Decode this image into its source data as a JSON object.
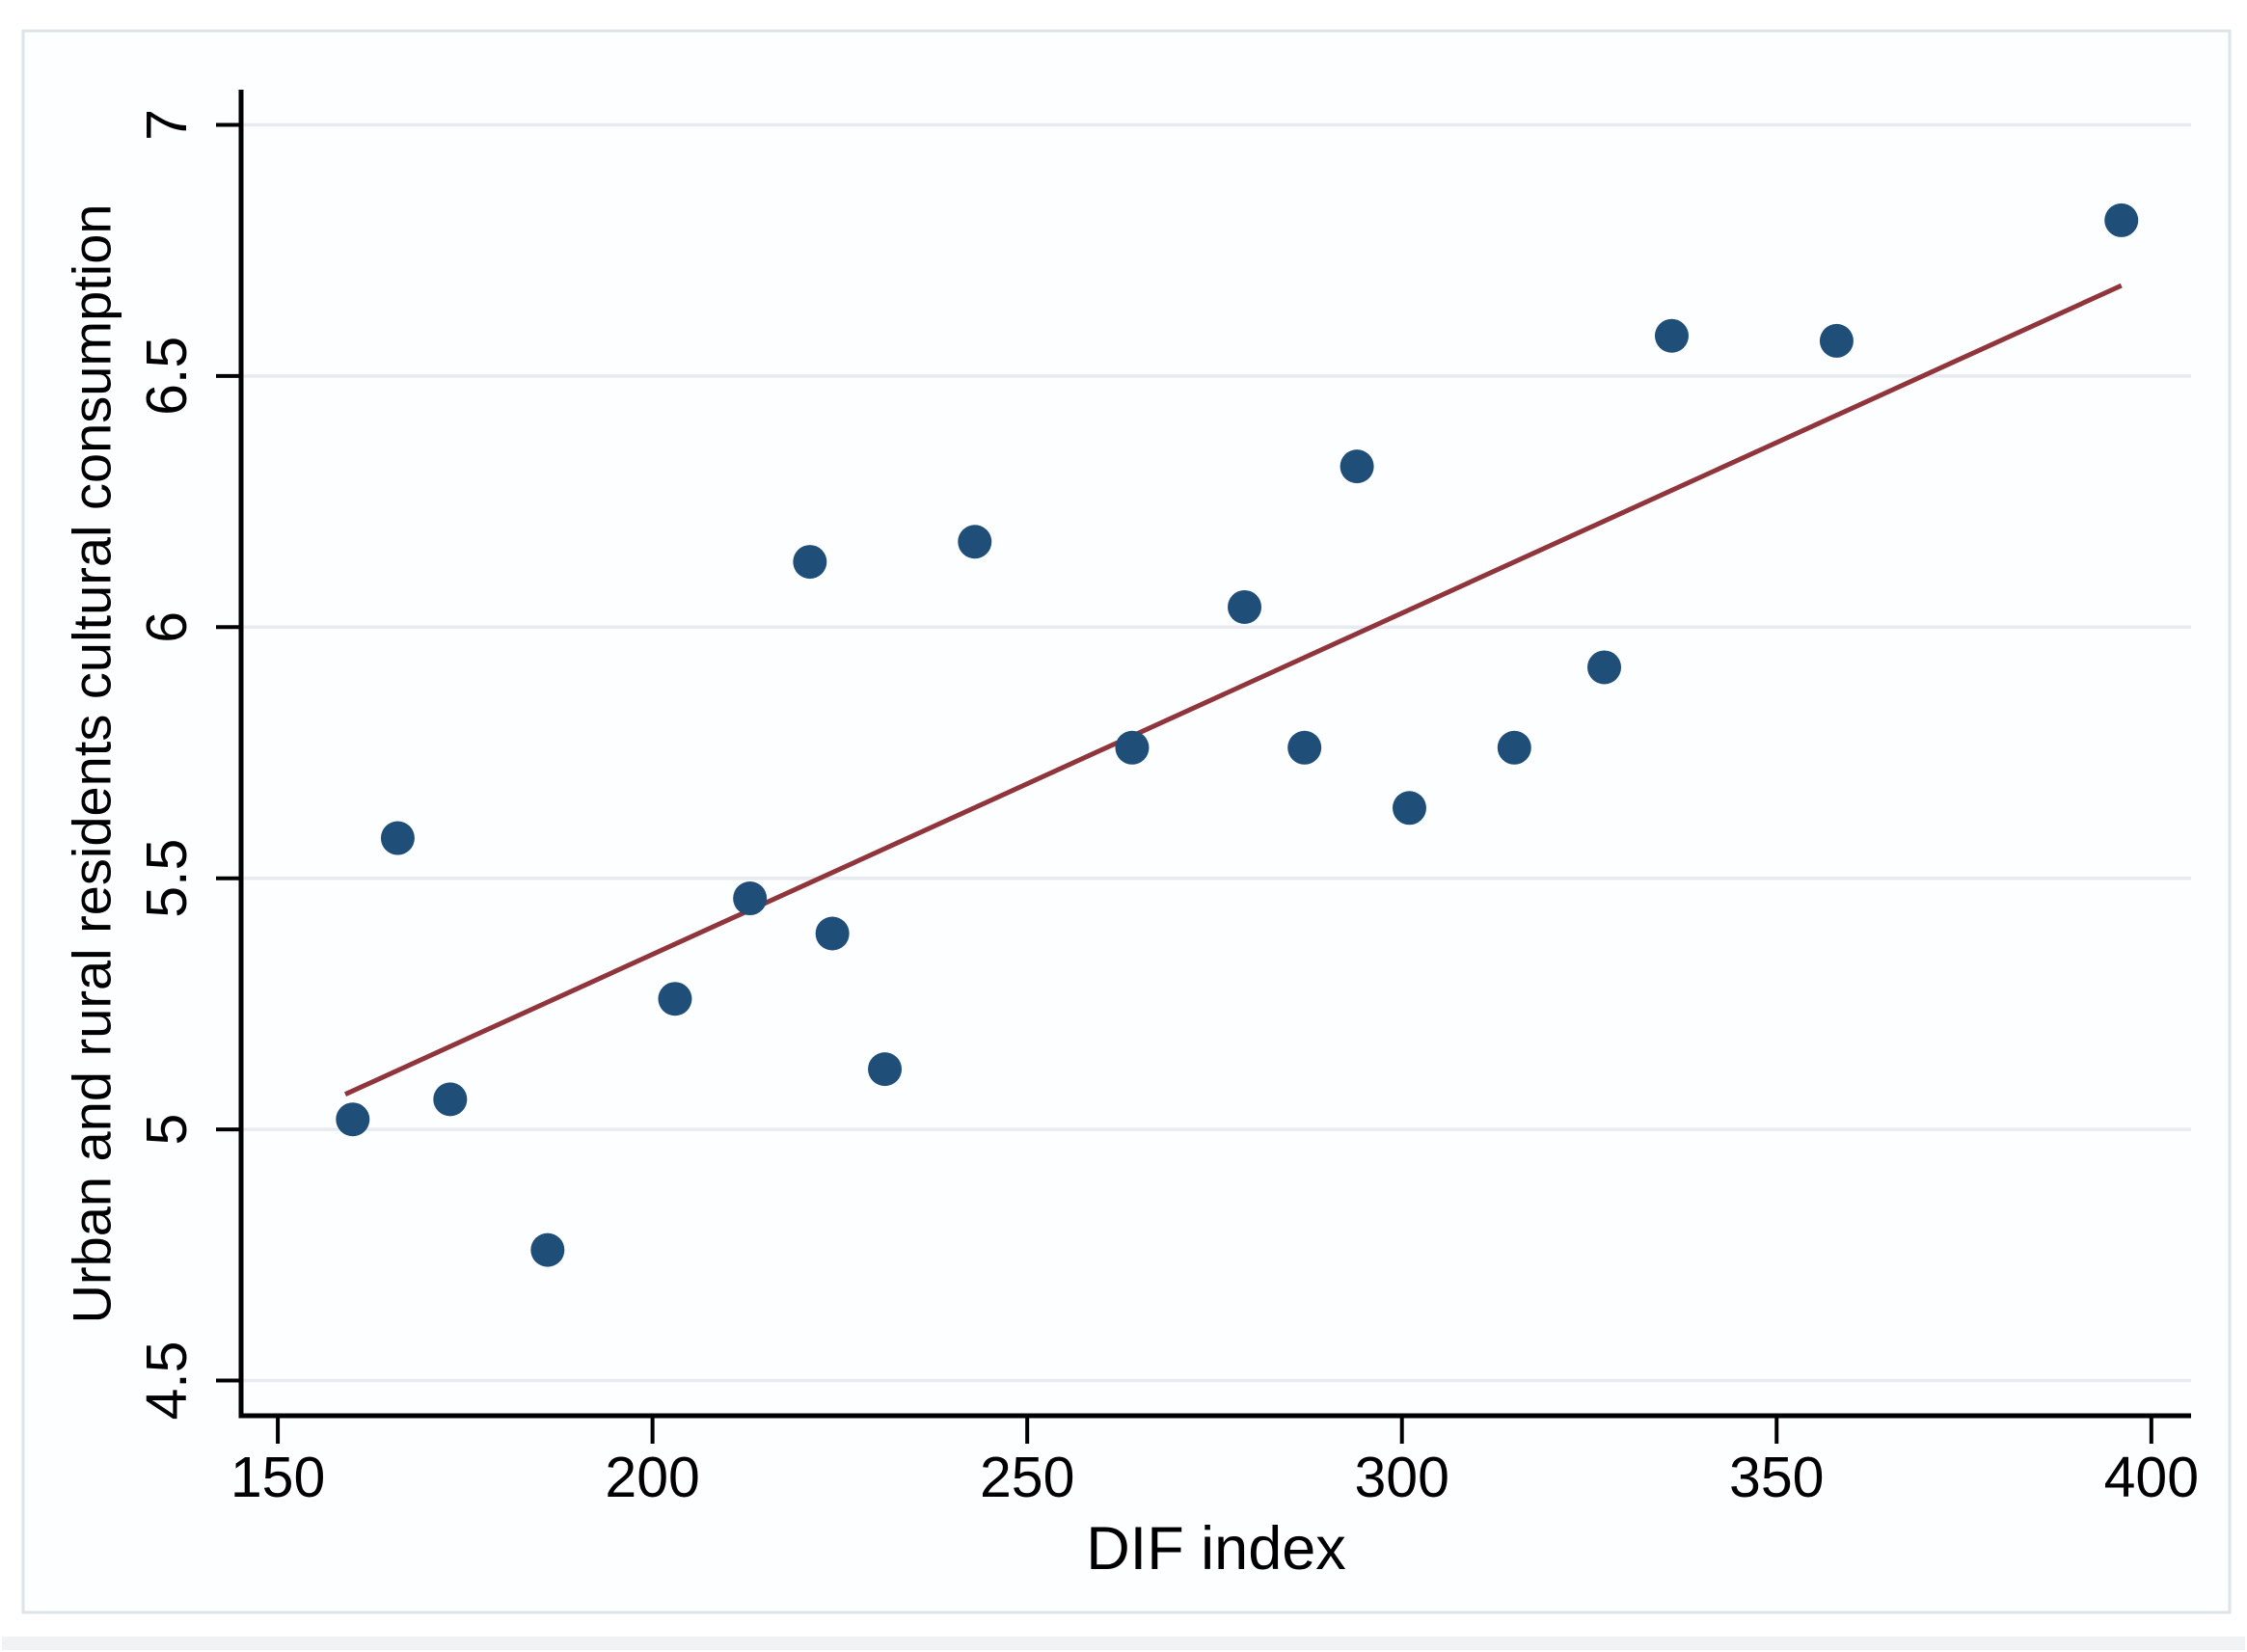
{
  "chart_data": {
    "type": "scatter",
    "title": "",
    "xlabel": "DIF index",
    "ylabel": "Urban and rural residents cultural consumption",
    "x_ticks": [
      150,
      200,
      250,
      300,
      350,
      400
    ],
    "x_tick_labels": [
      "150",
      "200",
      "250",
      "300",
      "350",
      "400"
    ],
    "y_ticks": [
      4.5,
      5,
      5.5,
      6,
      6.5,
      7
    ],
    "y_tick_labels": [
      "4.5",
      "5",
      "5.5",
      "6",
      "6.5",
      "7"
    ],
    "xlim": [
      145.1,
      405.3
    ],
    "ylim": [
      4.43,
      7.07
    ],
    "grid": "horizontal-only",
    "legend": "none",
    "series": [
      {
        "name": "observations",
        "points": [
          [
            160,
            5.02
          ],
          [
            166,
            5.58
          ],
          [
            173,
            5.06
          ],
          [
            186,
            4.76
          ],
          [
            203,
            5.26
          ],
          [
            213,
            5.46
          ],
          [
            221,
            6.13
          ],
          [
            224,
            5.39
          ],
          [
            231,
            5.12
          ],
          [
            243,
            6.17
          ],
          [
            264,
            5.76
          ],
          [
            279,
            6.04
          ],
          [
            287,
            5.76
          ],
          [
            294,
            6.32
          ],
          [
            301,
            5.64
          ],
          [
            315,
            5.76
          ],
          [
            327,
            5.92
          ],
          [
            336,
            6.58
          ],
          [
            358,
            6.57
          ],
          [
            396,
            6.81
          ]
        ]
      }
    ],
    "fit_line": {
      "x1": 159,
      "y1": 5.07,
      "x2": 396,
      "y2": 6.68
    },
    "colors": {
      "point": "#1f4e79",
      "fit_line": "#90353b",
      "grid": "#e7ebef",
      "axis": "#000000",
      "tick_label": "#000000",
      "frame": "#dfe4e9",
      "plot_bg": "#fdfeff",
      "page_bg": "#ffffff",
      "bottom_strip": "#f0f2f4"
    }
  }
}
